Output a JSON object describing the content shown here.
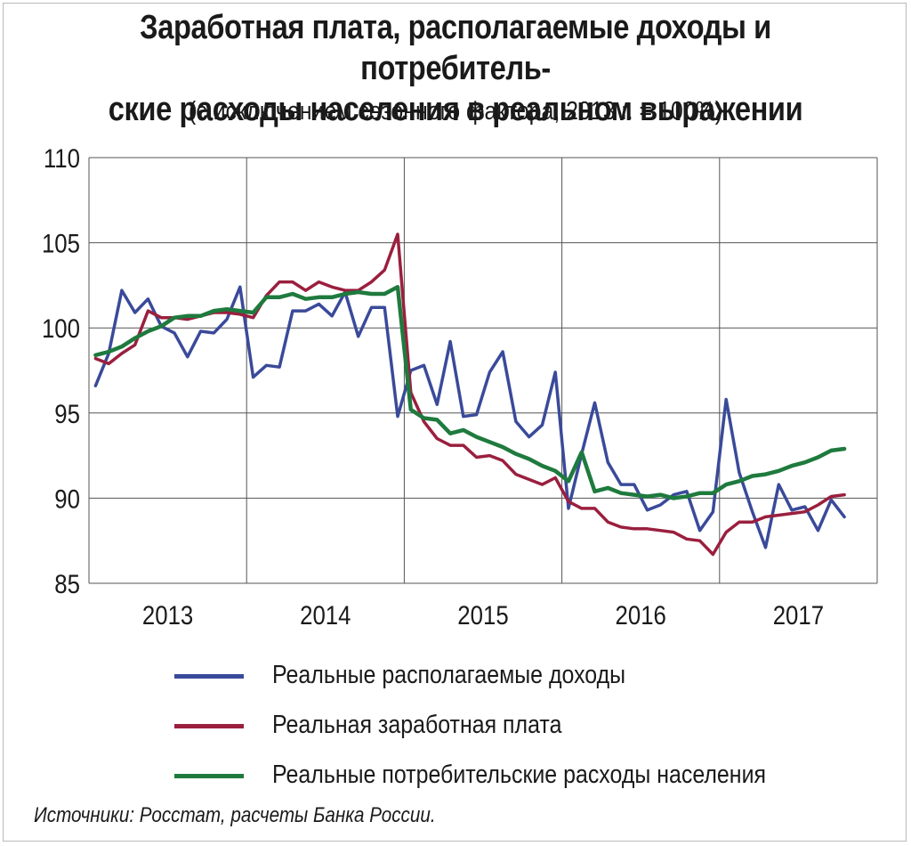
{
  "chart_data": {
    "type": "line",
    "title_line1": "Заработная плата, располагаемые доходы и потребитель-",
    "title_line2": "ские расходы населения в реальном выражении",
    "subtitle": "(с исключением сезонного фактора, 2013 г. = 100%)",
    "source": "Источники: Росстат, расчеты Банка России.",
    "ylim": [
      85,
      110
    ],
    "yticks": [
      "85",
      "90",
      "95",
      "100",
      "105",
      "110"
    ],
    "year_labels": [
      "2013",
      "2014",
      "2015",
      "2016",
      "2017"
    ],
    "x_start": "2013-01",
    "x_end": "2017-10",
    "grid": true,
    "legend_position": "bottom",
    "series": [
      {
        "name": "Реальные располагаемые доходы",
        "color": "#3a4a9a",
        "values": [
          96.6,
          98.5,
          102.2,
          100.9,
          101.7,
          100.1,
          99.7,
          98.3,
          99.8,
          99.7,
          100.5,
          102.4,
          97.1,
          97.8,
          97.7,
          101.0,
          101.0,
          101.4,
          100.7,
          102.1,
          99.5,
          101.2,
          101.2,
          94.8,
          97.5,
          97.8,
          95.5,
          99.2,
          94.8,
          94.9,
          97.4,
          98.6,
          94.5,
          93.6,
          94.3,
          97.4,
          89.4,
          92.6,
          95.6,
          92.1,
          90.8,
          90.8,
          89.3,
          89.6,
          90.2,
          90.4,
          88.1,
          89.2,
          95.8,
          91.5,
          89.2,
          87.1,
          90.8,
          89.3,
          89.5,
          88.1,
          89.9,
          88.9
        ]
      },
      {
        "name": "Реальная заработная плата",
        "color": "#9a1f3e",
        "values": [
          98.2,
          97.9,
          98.5,
          99.0,
          101.0,
          100.6,
          100.6,
          100.5,
          100.7,
          100.9,
          100.9,
          100.8,
          100.6,
          101.9,
          102.7,
          102.7,
          102.2,
          102.7,
          102.4,
          102.2,
          102.2,
          102.7,
          103.4,
          105.5,
          96.2,
          94.5,
          93.5,
          93.1,
          93.1,
          92.4,
          92.5,
          92.2,
          91.4,
          91.1,
          90.8,
          91.2,
          89.8,
          89.4,
          89.4,
          88.6,
          88.3,
          88.2,
          88.2,
          88.1,
          88.0,
          87.6,
          87.5,
          86.7,
          88.0,
          88.6,
          88.6,
          88.9,
          89.0,
          89.1,
          89.2,
          89.6,
          90.1,
          90.2
        ]
      },
      {
        "name": "Реальные потребительские расходы населения",
        "color": "#1f7a3e",
        "values": [
          98.4,
          98.6,
          98.9,
          99.4,
          99.8,
          100.1,
          100.6,
          100.7,
          100.7,
          101.0,
          101.1,
          101.0,
          100.9,
          101.8,
          101.8,
          102.0,
          101.7,
          101.8,
          101.8,
          102.0,
          102.1,
          102.0,
          102.0,
          102.4,
          95.2,
          94.7,
          94.6,
          93.8,
          94.0,
          93.6,
          93.3,
          93.0,
          92.6,
          92.3,
          91.9,
          91.6,
          91.0,
          92.7,
          90.4,
          90.6,
          90.3,
          90.2,
          90.1,
          90.2,
          90.0,
          90.1,
          90.3,
          90.3,
          90.8,
          91.0,
          91.3,
          91.4,
          91.6,
          91.9,
          92.1,
          92.4,
          92.8,
          92.9
        ]
      }
    ]
  }
}
